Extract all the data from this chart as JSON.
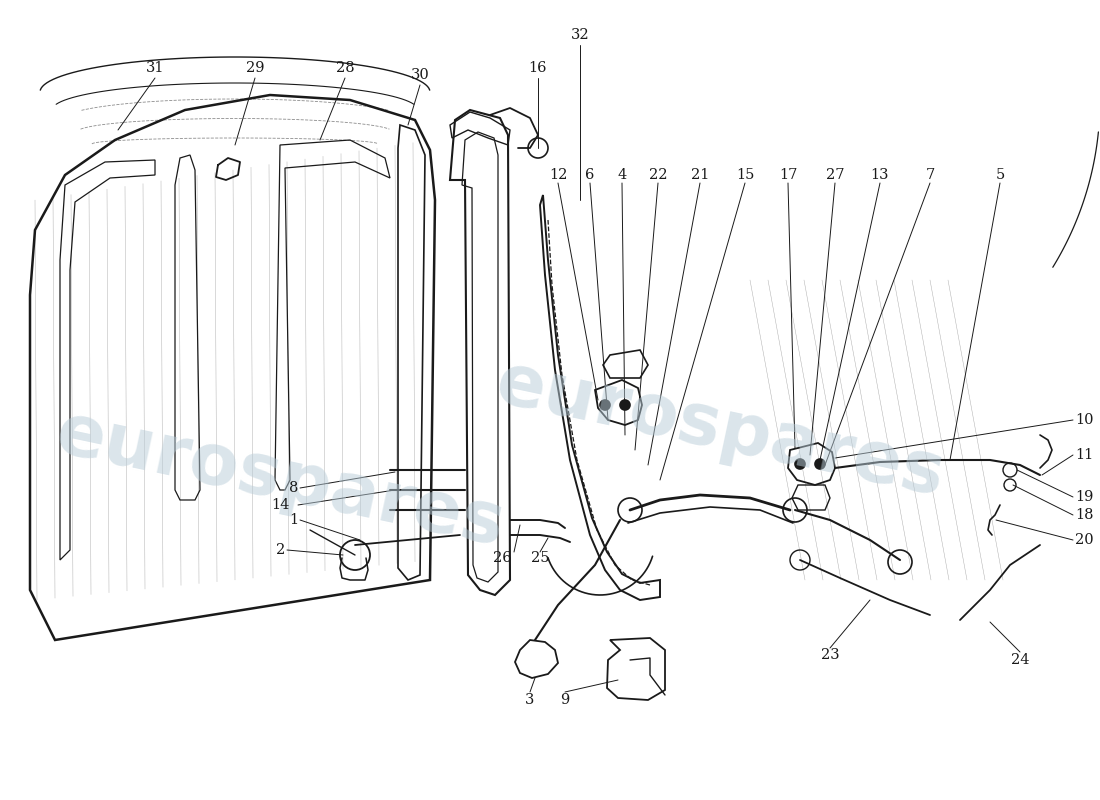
{
  "bg_color": "#ffffff",
  "line_color": "#1a1a1a",
  "wm_color": "#b8ccd8",
  "wm_text": "eurospares"
}
